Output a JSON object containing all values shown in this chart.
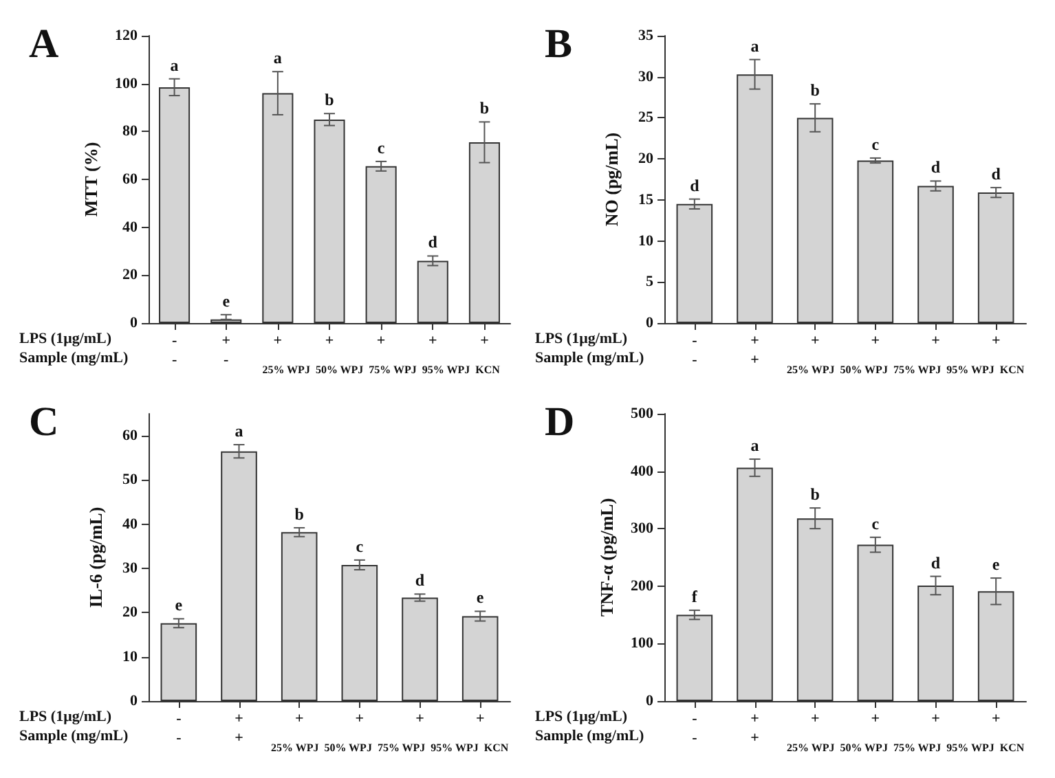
{
  "chart_data": [
    {
      "type": "bar",
      "title": "A",
      "ylabel": "MTT (%)",
      "categories": [
        "-\n-",
        "+\n-",
        "+",
        "+",
        "+",
        "+",
        "+"
      ],
      "values": [
        98.5,
        1.5,
        96,
        85,
        65.5,
        26,
        75.5
      ],
      "errors": [
        3.5,
        [
          1.5,
          3.5
        ],
        9,
        2.5,
        2,
        2,
        8.5
      ],
      "value_labels": [
        "a",
        "e",
        "a",
        "b",
        "c",
        "d",
        "b"
      ],
      "color": "#d4d4d4",
      "ylim": [
        0,
        120
      ],
      "yticks": [
        0,
        20,
        40,
        60,
        80,
        100,
        120
      ],
      "grid": false,
      "annotations": [
        "LPS (1μg/mL)",
        "Sample (mg/mL)",
        "25% WPJ  50% WPJ  75% WPJ  95% WPJ  KCN"
      ]
    },
    {
      "type": "bar",
      "title": "B",
      "ylabel": "NO (pg/mL)",
      "categories": [
        "-\n-",
        "+\n+",
        "+",
        "+",
        "+",
        "+"
      ],
      "values": [
        14.5,
        30.3,
        25,
        19.8,
        16.7,
        15.9
      ],
      "errors": [
        0.6,
        1.8,
        1.7,
        0.3,
        0.6,
        0.6
      ],
      "value_labels": [
        "d",
        "a",
        "b",
        "c",
        "d",
        "d"
      ],
      "color": "#d4d4d4",
      "ylim": [
        0,
        35
      ],
      "yticks": [
        0,
        5,
        10,
        15,
        20,
        25,
        30,
        35
      ],
      "grid": false,
      "annotations": [
        "LPS (1μg/mL)",
        "Sample (mg/mL)",
        "25% WPJ  50% WPJ  75% WPJ  95% WPJ  KCN"
      ]
    },
    {
      "type": "bar",
      "title": "C",
      "ylabel": "IL-6 (pg/mL)",
      "categories": [
        "-\n-",
        "+\n+",
        "+",
        "+",
        "+",
        "+"
      ],
      "values": [
        17.6,
        56.5,
        38.2,
        30.8,
        23.4,
        19.2
      ],
      "errors": [
        1,
        1.5,
        1,
        1.1,
        0.8,
        1.1
      ],
      "value_labels": [
        "e",
        "a",
        "b",
        "c",
        "d",
        "e"
      ],
      "color": "#d4d4d4",
      "ylim": [
        0,
        65
      ],
      "yticks": [
        0,
        10,
        20,
        30,
        40,
        50,
        60
      ],
      "grid": false,
      "annotations": [
        "LPS (1μg/mL)",
        "Sample (mg/mL)",
        "25% WPJ  50% WPJ  75% WPJ  95% WPJ  KCN"
      ]
    },
    {
      "type": "bar",
      "title": "D",
      "ylabel": "TNF-α (pg/mL)",
      "categories": [
        "-\n-",
        "+\n+",
        "+",
        "+",
        "+",
        "+"
      ],
      "values": [
        150,
        406,
        318,
        272,
        201,
        191
      ],
      "errors": [
        8,
        15,
        18,
        13,
        16,
        23
      ],
      "value_labels": [
        "f",
        "a",
        "b",
        "c",
        "d",
        "e"
      ],
      "color": "#d4d4d4",
      "ylim": [
        0,
        500
      ],
      "yticks": [
        0,
        100,
        200,
        300,
        400,
        500
      ],
      "grid": false,
      "annotations": [
        "LPS (1μg/mL)",
        "Sample (mg/mL)",
        "25% WPJ  50% WPJ  75% WPJ  95% WPJ  KCN"
      ]
    }
  ]
}
